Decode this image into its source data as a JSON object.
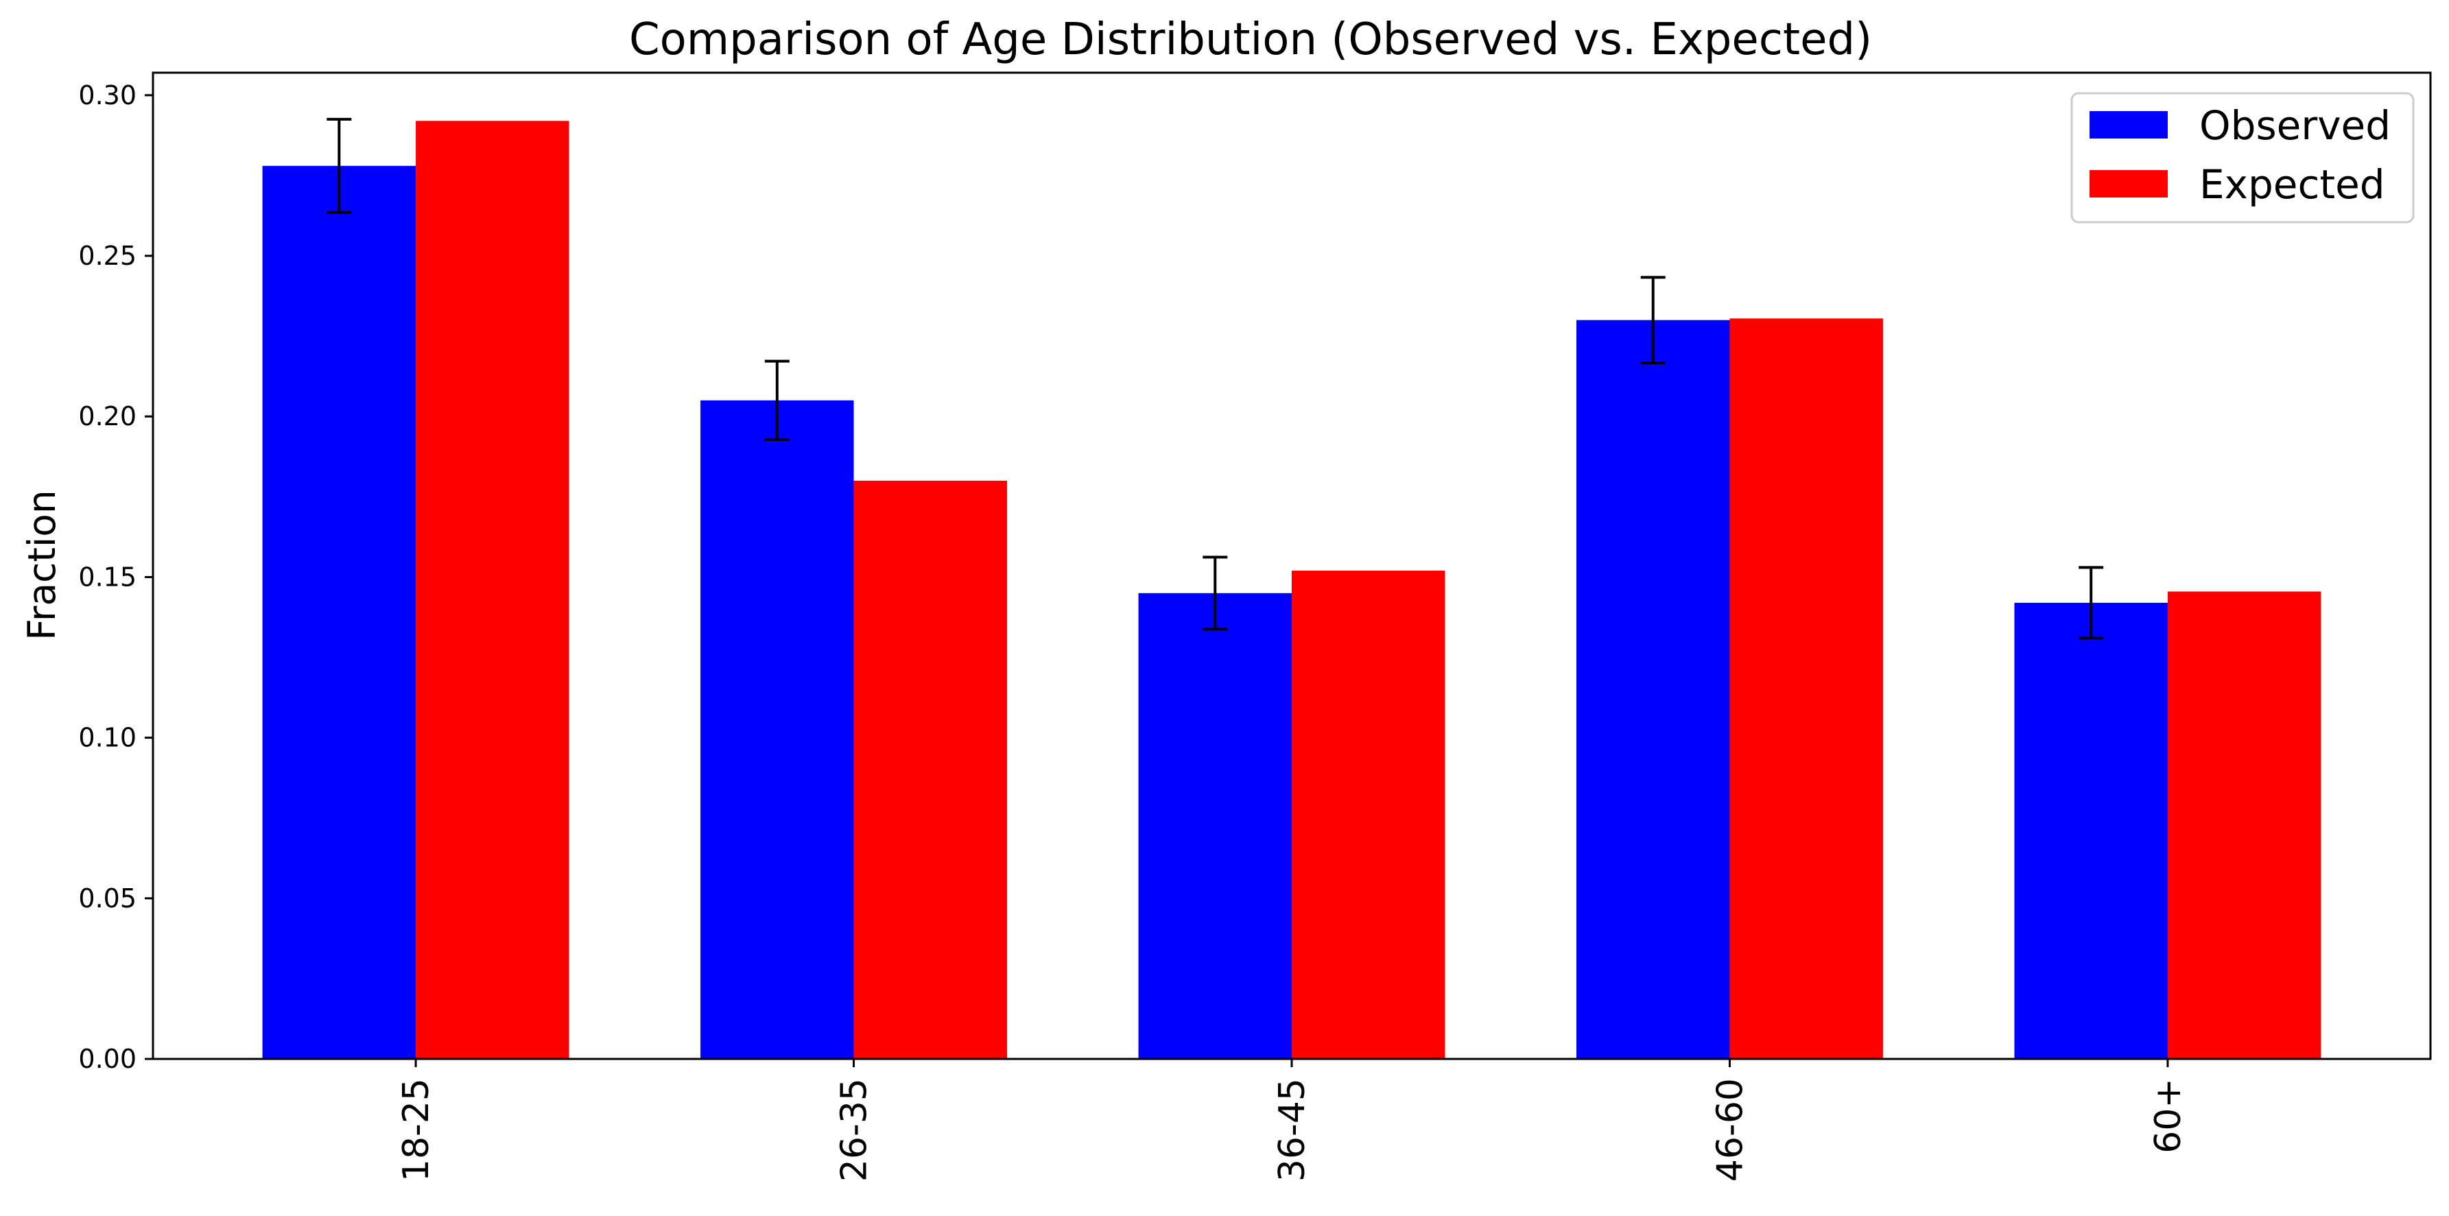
{
  "chart_data": {
    "type": "bar",
    "title": "Comparison of Age Distribution (Observed vs. Expected)",
    "xlabel": "",
    "ylabel": "Fraction",
    "categories": [
      "18-25",
      "26-35",
      "36-45",
      "46-60",
      "60+"
    ],
    "series": [
      {
        "name": "Observed",
        "color": "#0000ff",
        "values": [
          0.278,
          0.205,
          0.145,
          0.23,
          0.142
        ],
        "error": [
          0.0145,
          0.0122,
          0.0112,
          0.0133,
          0.011
        ]
      },
      {
        "name": "Expected",
        "color": "#ff0000",
        "values": [
          0.292,
          0.18,
          0.152,
          0.2305,
          0.1455
        ]
      }
    ],
    "ylim": [
      0,
      0.307
    ],
    "yticks": [
      0.0,
      0.05,
      0.1,
      0.15,
      0.2,
      0.25,
      0.3
    ],
    "ytick_labels": [
      "0.00",
      "0.05",
      "0.10",
      "0.15",
      "0.20",
      "0.25",
      "0.30"
    ],
    "legend": {
      "position": "top-right",
      "entries": [
        "Observed",
        "Expected"
      ]
    },
    "grid": false
  }
}
